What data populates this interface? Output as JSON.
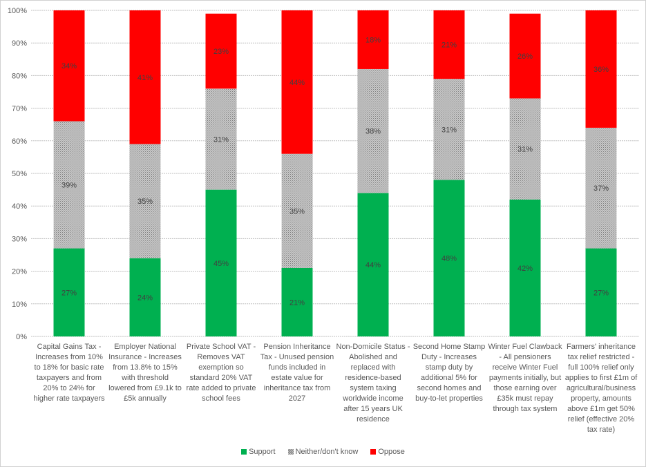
{
  "chart_data": {
    "type": "bar",
    "stacked": true,
    "title": "",
    "xlabel": "",
    "ylabel": "",
    "ylim": [
      0,
      100
    ],
    "yticks": [
      "0%",
      "10%",
      "20%",
      "30%",
      "40%",
      "50%",
      "60%",
      "70%",
      "80%",
      "90%",
      "100%"
    ],
    "grid": true,
    "legend_position": "bottom",
    "categories": [
      "Capital Gains Tax - Increases from 10% to 18% for basic rate taxpayers and from 20% to 24% for higher rate taxpayers",
      "Employer National Insurance - Increases from 13.8% to 15% with threshold lowered from £9.1k to £5k annually",
      "Private School VAT - Removes VAT exemption so standard 20% VAT rate added to private school fees",
      "Pension Inheritance Tax - Unused pension funds included in estate value for inheritance tax from 2027",
      "Non-Domicile Status - Abolished and replaced with residence-based system taxing worldwide income after 15 years UK residence",
      "Second Home Stamp Duty - Increases stamp duty by additional 5% for second homes and buy-to-let properties",
      "Winter Fuel Clawback - All pensioners receive Winter Fuel payments initially, but those earning over £35k must repay through tax system",
      "Farmers' inheritance tax relief restricted - full 100% relief only applies to first £1m of agricultural/business property, amounts above £1m get 50% relief (effective 20% tax rate)"
    ],
    "series": [
      {
        "name": "Support",
        "color": "#00b050",
        "values": [
          27,
          24,
          45,
          21,
          44,
          48,
          42,
          27
        ]
      },
      {
        "name": "Neither/don't know",
        "color": "#a6a6a6",
        "values": [
          39,
          35,
          31,
          35,
          38,
          31,
          31,
          37
        ]
      },
      {
        "name": "Oppose",
        "color": "#ff0000",
        "values": [
          34,
          41,
          23,
          44,
          18,
          21,
          26,
          36
        ]
      }
    ]
  }
}
